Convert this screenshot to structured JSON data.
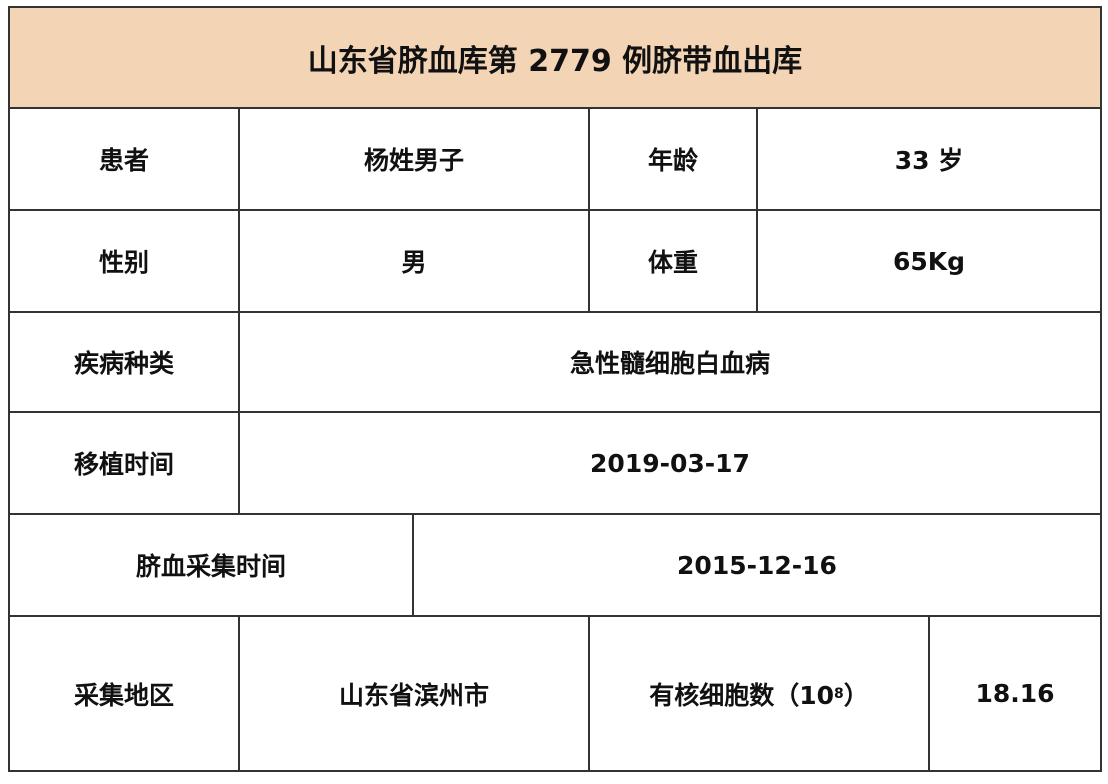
{
  "title": "山东省脐血库第 2779 例脐带血出库",
  "header_bg": "#f3d4b5",
  "rows": {
    "patient_label": "患者",
    "patient_value": "杨姓男子",
    "age_label": "年龄",
    "age_value": "33 岁",
    "sex_label": "性别",
    "sex_value": "男",
    "weight_label": "体重",
    "weight_value": "65Kg",
    "disease_label": "疾病种类",
    "disease_value": "急性髓细胞白血病",
    "transplant_label": "移植时间",
    "transplant_value": "2019-03-17",
    "collection_label": "脐血采集时间",
    "collection_value": "2015-12-16",
    "region_label": "采集地区",
    "region_value": "山东省滨州市",
    "cells_label": "有核细胞数（10",
    "cells_exponent": "8",
    "cells_label_close": "）",
    "cells_value": "18.16"
  }
}
